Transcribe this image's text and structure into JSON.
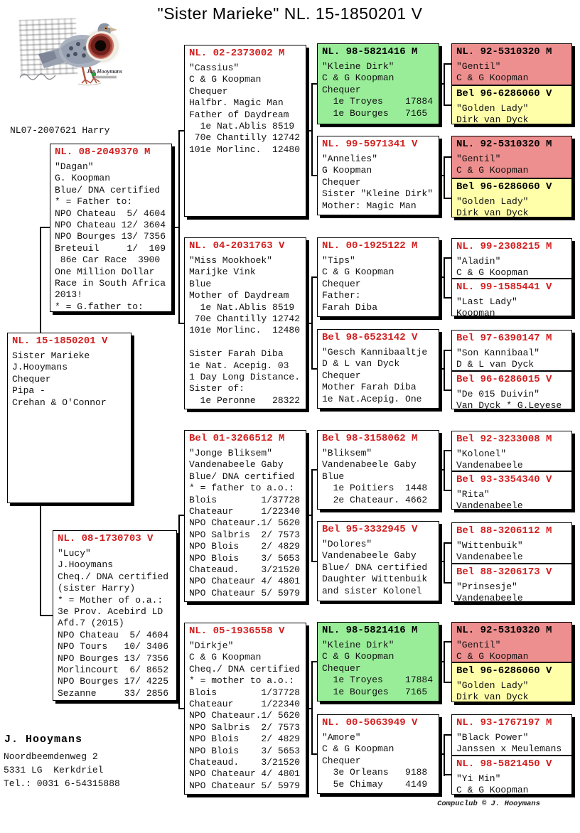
{
  "title": "\"Sister Marieke\"  NL. 15-1850201 V",
  "photo": {
    "caption": "NL07-2007621 Harry",
    "eye_caption": "Jan Hooymans"
  },
  "owner": {
    "name": "J. Hooymans",
    "address_line1": "Noordbeemdenweg 2",
    "address_line2": "5331 LG  Kerkdriel",
    "phone": "Tel.: 0031 6-54315888"
  },
  "credit": "Compuclub © J. Hooymans",
  "colors": {
    "ring_red": "#d22020",
    "box_green": "#99ed99",
    "box_pink": "#ee8f8f",
    "box_yellow": "#ffffaa"
  },
  "boxes": {
    "dagan": {
      "ring": "NL. 08-2049370 M",
      "bg": "white",
      "lines": [
        "\"Dagan\"",
        "G. Koopman",
        "Blue/ DNA certified",
        "* = Father to:",
        "NPO Chateau  5/ 4604",
        "NPO Chateau 12/ 3604",
        "NPO Bourges 13/ 7356",
        "Breteuil     1/  109",
        " 86e Car Race  3900",
        "One Million Dollar",
        "Race in South Africa",
        "2013!",
        "* = G.father to:"
      ]
    },
    "subject": {
      "ring": "NL. 15-1850201 V",
      "bg": "white",
      "lines": [
        "Sister Marieke",
        "J.Hooymans",
        "Chequer",
        "Pipa -",
        "Crehan & O'Connor"
      ]
    },
    "lucy": {
      "ring": "NL. 08-1730703 V",
      "bg": "white",
      "lines": [
        "\"Lucy\"",
        "J.Hooymans",
        "Cheq./ DNA certified",
        "(sister Harry)",
        "* = Mother of o.a.:",
        "3e Prov. Acebird LD",
        "Afd.7 (2015)",
        "NPO Chateau  5/ 4604",
        "NPO Tours   10/ 3406",
        "NPO Bourges 13/ 7356",
        "Morlincourt  6/ 8652",
        "NPO Bourges 17/ 4225",
        "Sezanne     33/ 2856"
      ]
    },
    "cassius": {
      "ring": "NL. 02-2373002 M",
      "bg": "white",
      "lines": [
        "\"Cassius\"",
        "C & G Koopman",
        "Chequer",
        "Halfbr. Magic Man",
        "Father of Daydream",
        "  1e Nat.Ablis 8519",
        " 70e Chantilly 12742",
        "101e Morlinc.  12480"
      ]
    },
    "mookhoek": {
      "ring": "NL. 04-2031763 V",
      "bg": "white",
      "lines": [
        "\"Miss Mookhoek\"",
        "Marijke Vink",
        "Blue",
        "Mother of Daydream",
        "  1e Nat.Ablis 8519",
        " 70e Chantilly 12742",
        "101e Morlinc.  12480",
        "",
        "Sister Farah Diba",
        "1e Nat. Acepig. 03",
        "1 Day Long Distance.",
        "Sister of:",
        "  1e Peronne   28322"
      ]
    },
    "jongebliksem": {
      "ring": "Bel 01-3266512 M",
      "bg": "white",
      "lines": [
        "\"Jonge Bliksem\"",
        "Vandenabeele Gaby",
        "Blue/ DNA certified",
        "* = father to a.o.:",
        "Blois        1/37728",
        "Chateaur     1/22340",
        "NPO Chateaur.1/ 5620",
        "NPO Salbris  2/ 7573",
        "NPO Blois    2/ 4829",
        "NPO Blois    3/ 5653",
        "Chateaud.    3/21520",
        "NPO Chateaur 4/ 4801",
        "NPO Chateaur 5/ 5979"
      ]
    },
    "dirkje": {
      "ring": "NL. 05-1936558 V",
      "bg": "white",
      "lines": [
        "\"Dirkje\"",
        "C & G Koopman",
        "Cheq./ DNA certified",
        "* = mother to a.o.:",
        "Blois        1/37728",
        "Chateaur     1/22340",
        "NPO Chateaur.1/ 5620",
        "NPO Salbris  2/ 7573",
        "NPO Blois    2/ 4829",
        "NPO Blois    3/ 5653",
        "Chateaud.    3/21520",
        "NPO Chateaur 4/ 4801",
        "NPO Chateaur 5/ 5979"
      ]
    },
    "kleinedirk": {
      "ring": "NL. 98-5821416 M",
      "bg": "green",
      "lines": [
        "\"Kleine Dirk\"",
        "C & G Koopman",
        "Chequer",
        "  1e Troyes    17884",
        "  1e Bourges   7165"
      ]
    },
    "annelies": {
      "ring": "NL. 99-5971341 V",
      "bg": "white",
      "lines": [
        "\"Annelies\"",
        "G Koopman",
        "Chequer",
        "Sister \"Kleine Dirk\"",
        "Mother: Magic Man"
      ]
    },
    "tips": {
      "ring": "NL. 00-1925122 M",
      "bg": "white",
      "lines": [
        "\"Tips\"",
        "C & G Koopman",
        "Chequer",
        "Father:",
        "Farah Diba"
      ]
    },
    "gesch": {
      "ring": "Bel 98-6523142 V",
      "bg": "white",
      "lines": [
        "\"Gesch Kannibaaltje",
        "D & L van Dyck",
        "Chequer",
        "Mother Farah Diba",
        "1e Nat.Acepig. One"
      ]
    },
    "bliksem": {
      "ring": "Bel 98-3158062 M",
      "bg": "white",
      "lines": [
        "\"Bliksem\"",
        "Vandenabeele Gaby",
        "Blue",
        "  1e Poitiers  1448",
        "  2e Chateaur. 4662"
      ]
    },
    "dolores": {
      "ring": "Bel 95-3332945 V",
      "bg": "white",
      "lines": [
        "\"Dolores\"",
        "Vandenabeele Gaby",
        "Blue/ DNA certified",
        "Daughter Wittenbuik",
        "and sister Kolonel"
      ]
    },
    "amore": {
      "ring": "NL. 00-5063949 V",
      "bg": "white",
      "lines": [
        "\"Amore\"",
        "C & G Koopman",
        "Chequer",
        "  3e Orleans   9188",
        "  5e Chimay    4149"
      ]
    },
    "gentil": {
      "ring": "NL. 92-5310320 M",
      "bg": "pink",
      "lines": [
        "\"Gentil\"",
        "C & G Koopman"
      ]
    },
    "goldenlady": {
      "ring": "Bel 96-6286060 V",
      "bg": "yellow",
      "lines": [
        "\"Golden Lady\"",
        "Dirk van Dyck"
      ]
    },
    "aladin": {
      "ring": "NL. 99-2308215 M",
      "bg": "white",
      "lines": [
        "\"Aladin\"",
        "C & G Koopman"
      ]
    },
    "lastlady": {
      "ring": "NL. 99-1585441 V",
      "bg": "white",
      "lines": [
        "\"Last Lady\"",
        "Koopman"
      ]
    },
    "sonkannibaal": {
      "ring": "Bel 97-6390147 M",
      "bg": "white",
      "lines": [
        "\"Son Kannibaal\"",
        "D & L van Dyck"
      ]
    },
    "de015": {
      "ring": "Bel 96-6286015 V",
      "bg": "white",
      "lines": [
        "\"De 015 Duivin\"",
        "Van Dyck * G.Leyese"
      ]
    },
    "kolonel": {
      "ring": "Bel 92-3233008 M",
      "bg": "white",
      "lines": [
        "\"Kolonel\"",
        "Vandenabeele"
      ]
    },
    "rita": {
      "ring": "Bel 93-3354340 V",
      "bg": "white",
      "lines": [
        "\"Rita\"",
        "Vandenabeele"
      ]
    },
    "wittenbuik": {
      "ring": "Bel 88-3206112 M",
      "bg": "white",
      "lines": [
        "\"Wittenbuik\"",
        "Vandenabeele"
      ]
    },
    "prinsesje": {
      "ring": "Bel 88-3206173 V",
      "bg": "white",
      "lines": [
        "\"Prinsesje\"",
        "Vandenabeele"
      ]
    },
    "blackpower": {
      "ring": "NL. 93-1767197 M",
      "bg": "white",
      "lines": [
        "\"Black Power\"",
        "Janssen x Meulemans"
      ]
    },
    "yimin": {
      "ring": "NL. 98-5821450 V",
      "bg": "white",
      "lines": [
        "\"Yi Min\"",
        "C & G Koopman"
      ]
    }
  }
}
